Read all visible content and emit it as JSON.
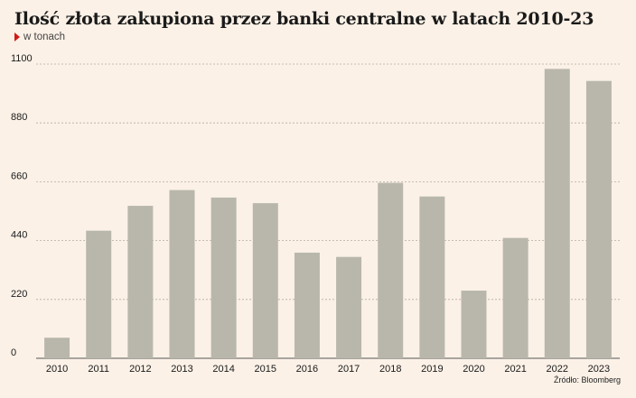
{
  "header": {
    "title": "Ilość złota zakupiona przez banki centralne w latach 2010-23",
    "subtitle": "w tonach"
  },
  "footer": {
    "source": "Źródło: Bloomberg"
  },
  "colors": {
    "bar": "#b9b7ac",
    "grid": "#b5aca3",
    "background": "#fbf1e7",
    "accent": "#d11a1a"
  },
  "chart_data": {
    "type": "bar",
    "title": "Ilość złota zakupiona przez banki centralne w latach 2010-23",
    "subtitle": "w tonach",
    "categories": [
      "2010",
      "2011",
      "2012",
      "2013",
      "2014",
      "2015",
      "2016",
      "2017",
      "2018",
      "2019",
      "2020",
      "2021",
      "2022",
      "2023"
    ],
    "values": [
      77,
      477,
      570,
      629,
      601,
      580,
      395,
      379,
      656,
      605,
      253,
      450,
      1082,
      1037
    ],
    "ylim": [
      0,
      1100
    ],
    "yticks": [
      0,
      220,
      440,
      660,
      880,
      1100
    ],
    "grid": true
  }
}
